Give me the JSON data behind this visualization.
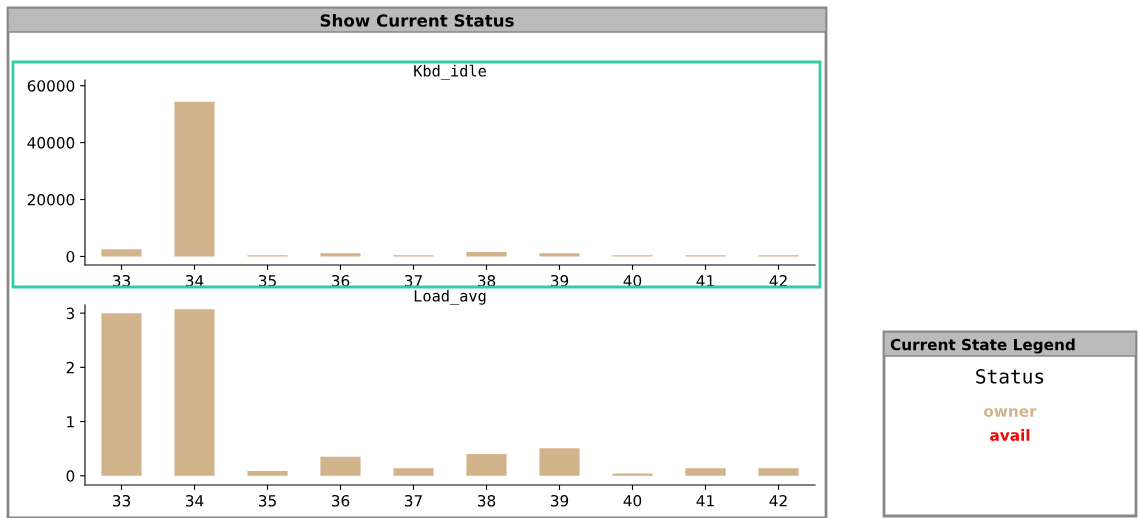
{
  "chart_data": [
    {
      "type": "bar",
      "title": "Kbd_idle",
      "annotations": [
        "Show Current Status"
      ],
      "categories": [
        "33",
        "34",
        "35",
        "36",
        "37",
        "38",
        "39",
        "40",
        "41",
        "42"
      ],
      "series": [
        {
          "color": "#d2b48c",
          "values": [
            2500,
            54400,
            400,
            1100,
            400,
            1600,
            1100,
            400,
            400,
            400
          ]
        }
      ],
      "ylim": [
        -3000,
        62000
      ],
      "yticks": [
        0,
        20000,
        40000,
        60000
      ],
      "grid": false,
      "legend": false
    },
    {
      "type": "bar",
      "title": "Load_avg",
      "categories": [
        "33",
        "34",
        "35",
        "36",
        "37",
        "38",
        "39",
        "40",
        "41",
        "42"
      ],
      "series": [
        {
          "color": "#d2b48c",
          "values": [
            3.0,
            3.07,
            0.09,
            0.35,
            0.14,
            0.4,
            0.51,
            0.04,
            0.14,
            0.14
          ]
        }
      ],
      "ylim": [
        -0.17,
        3.15
      ],
      "yticks": [
        0,
        1,
        2,
        3
      ],
      "grid": false,
      "legend": false
    },
    {
      "type": "other",
      "title": "Current State Legend",
      "subtitle": "Status",
      "categories": [
        "owner",
        "avail"
      ],
      "colors": [
        "#d2b48c",
        "#ff0000"
      ]
    }
  ]
}
